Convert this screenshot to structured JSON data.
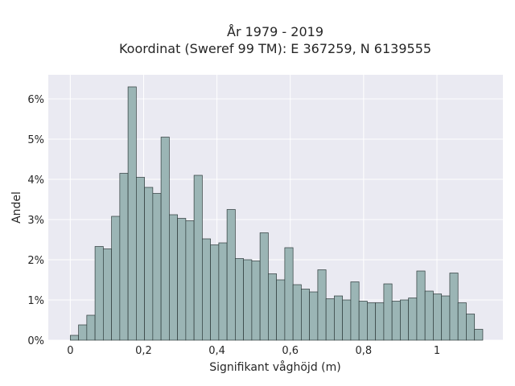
{
  "chart_data": {
    "type": "bar",
    "title_line1": "År 1979 - 2019",
    "title_line2": "Koordinat (Sweref 99 TM): E 367259, N 6139555",
    "xlabel": "Signifikant våghöjd (m)",
    "ylabel": "Andel",
    "xlim": [
      -0.06,
      1.18
    ],
    "ylim": [
      0,
      6.6
    ],
    "x_ticks": [
      0,
      0.2,
      0.4,
      0.6,
      0.8,
      1.0
    ],
    "x_tick_labels": [
      "0",
      "0,2",
      "0,4",
      "0,6",
      "0,8",
      "1"
    ],
    "y_ticks": [
      0,
      1,
      2,
      3,
      4,
      5,
      6
    ],
    "y_tick_labels": [
      "0%",
      "1%",
      "2%",
      "3%",
      "4%",
      "5%",
      "6%"
    ],
    "grid": true,
    "bin_width": 0.0225,
    "bin_starts": [
      0.0,
      0.0225,
      0.045,
      0.0675,
      0.09,
      0.1125,
      0.135,
      0.1575,
      0.18,
      0.2025,
      0.225,
      0.2475,
      0.27,
      0.2925,
      0.315,
      0.3375,
      0.36,
      0.3825,
      0.405,
      0.4275,
      0.45,
      0.4725,
      0.495,
      0.5175,
      0.54,
      0.5625,
      0.585,
      0.6075,
      0.63,
      0.6525,
      0.675,
      0.6975,
      0.72,
      0.7425,
      0.765,
      0.7875,
      0.81,
      0.8325,
      0.855,
      0.8775,
      0.9,
      0.9225,
      0.945,
      0.9675,
      0.99,
      1.0125,
      1.035,
      1.0575,
      1.08,
      1.1025
    ],
    "values": [
      0.12,
      0.38,
      0.62,
      2.33,
      2.27,
      3.08,
      4.15,
      6.3,
      4.05,
      3.8,
      3.65,
      5.05,
      3.12,
      3.03,
      2.97,
      4.1,
      2.52,
      2.37,
      2.42,
      3.25,
      2.03,
      2.0,
      1.97,
      2.67,
      1.65,
      1.5,
      2.3,
      1.38,
      1.27,
      1.2,
      1.75,
      1.03,
      1.1,
      1.0,
      1.45,
      0.97,
      0.93,
      0.93,
      1.4,
      0.97,
      1.0,
      1.05,
      1.72,
      1.22,
      1.15,
      1.1,
      1.67,
      0.93,
      0.65,
      0.27
    ],
    "colors": {
      "bar_fill": "#9bb5b5",
      "bar_edge": "#2e3b3b",
      "plot_bg": "#eaeaf2",
      "grid": "#ffffff",
      "text": "#262626"
    }
  }
}
